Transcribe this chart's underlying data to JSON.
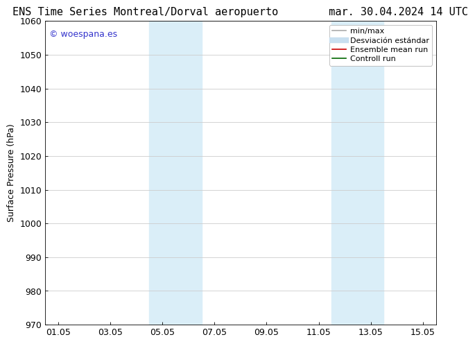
{
  "title": "ENS Time Series Montreal/Dorval aeropuerto        mar. 30.04.2024 14 UTC",
  "ylabel": "Surface Pressure (hPa)",
  "xlim_labels": [
    "01.05",
    "03.05",
    "05.05",
    "07.05",
    "09.05",
    "11.05",
    "13.05",
    "15.05"
  ],
  "ylim": [
    970,
    1060
  ],
  "yticks": [
    970,
    980,
    990,
    1000,
    1010,
    1020,
    1030,
    1040,
    1050,
    1060
  ],
  "xtick_positions": [
    0,
    2,
    4,
    6,
    8,
    10,
    12,
    14
  ],
  "xlim": [
    -0.5,
    14.5
  ],
  "shaded_regions": [
    {
      "x_start": 3.5,
      "x_end": 5.5,
      "color": "#daeef8"
    },
    {
      "x_start": 10.5,
      "x_end": 12.5,
      "color": "#daeef8"
    }
  ],
  "watermark_text": "© woespana.es",
  "watermark_color": "#3333cc",
  "legend_entries": [
    {
      "label": "min/max",
      "color": "#aaaaaa",
      "lw": 1.2
    },
    {
      "label": "Desviación estándar",
      "color": "#c8dff0",
      "lw": 6
    },
    {
      "label": "Ensemble mean run",
      "color": "#cc0000",
      "lw": 1.2
    },
    {
      "label": "Controll run",
      "color": "#006600",
      "lw": 1.2
    }
  ],
  "background_color": "#ffffff",
  "grid_color": "#cccccc",
  "title_fontsize": 11,
  "axis_fontsize": 9,
  "legend_fontsize": 8,
  "watermark_fontsize": 9
}
